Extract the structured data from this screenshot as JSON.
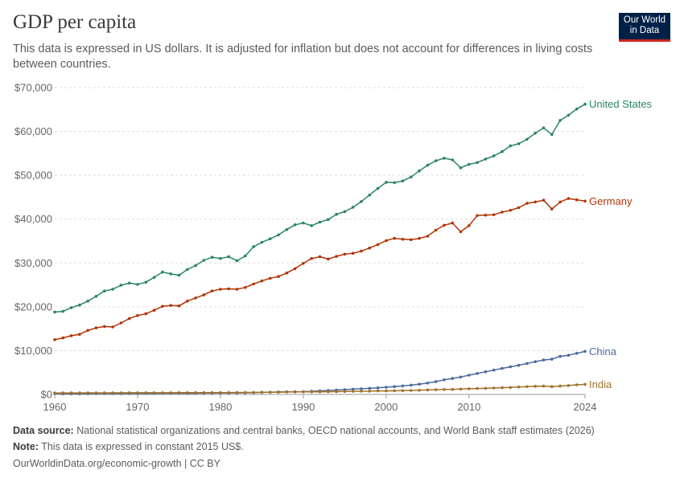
{
  "header": {
    "title": "GDP per capita",
    "subtitle": "This data is expressed in US dollars. It is adjusted for inflation but does not account for differences in living costs between countries.",
    "logo_line1": "Our World",
    "logo_line2": "in Data"
  },
  "footer": {
    "source_label": "Data source:",
    "source_text": "National statistical organizations and central banks, OECD national accounts, and World Bank staff estimates (2026)",
    "note_label": "Note:",
    "note_text": "This data is expressed in constant 2015 US$.",
    "credit": "OurWorldinData.org/economic-growth | CC BY"
  },
  "chart_data": {
    "type": "line",
    "xlim": [
      1960,
      2024
    ],
    "ylim": [
      0,
      70000
    ],
    "x_ticks": [
      1960,
      1970,
      1980,
      1990,
      2000,
      2010,
      2024
    ],
    "x_tick_labels": [
      "1960",
      "1970",
      "1980",
      "1990",
      "2000",
      "2010",
      "2024"
    ],
    "y_ticks": [
      0,
      10000,
      20000,
      30000,
      40000,
      50000,
      60000,
      70000
    ],
    "y_tick_labels": [
      "$0",
      "$10,000",
      "$20,000",
      "$30,000",
      "$40,000",
      "$50,000",
      "$60,000",
      "$70,000"
    ],
    "grid": true,
    "legend": "inline-right",
    "x": [
      1960,
      1961,
      1962,
      1963,
      1964,
      1965,
      1966,
      1967,
      1968,
      1969,
      1970,
      1971,
      1972,
      1973,
      1974,
      1975,
      1976,
      1977,
      1978,
      1979,
      1980,
      1981,
      1982,
      1983,
      1984,
      1985,
      1986,
      1987,
      1988,
      1989,
      1990,
      1991,
      1992,
      1993,
      1994,
      1995,
      1996,
      1997,
      1998,
      1999,
      2000,
      2001,
      2002,
      2003,
      2004,
      2005,
      2006,
      2007,
      2008,
      2009,
      2010,
      2011,
      2012,
      2013,
      2014,
      2015,
      2016,
      2017,
      2018,
      2019,
      2020,
      2021,
      2022,
      2023,
      2024
    ],
    "series": [
      {
        "name": "United States",
        "color": "#2c8465",
        "values": [
          18800,
          18950,
          19800,
          20400,
          21300,
          22400,
          23600,
          24000,
          24900,
          25400,
          25100,
          25600,
          26700,
          27900,
          27500,
          27200,
          28500,
          29400,
          30600,
          31300,
          31000,
          31400,
          30500,
          31600,
          33700,
          34700,
          35500,
          36400,
          37600,
          38700,
          39100,
          38500,
          39300,
          39900,
          41100,
          41700,
          42700,
          44000,
          45500,
          47000,
          48400,
          48300,
          48700,
          49600,
          51000,
          52300,
          53300,
          53900,
          53500,
          51700,
          52500,
          52900,
          53700,
          54400,
          55400,
          56700,
          57200,
          58200,
          59600,
          60800,
          59300,
          62500,
          63700,
          65100,
          66200
        ]
      },
      {
        "name": "Germany",
        "color": "#b13507",
        "values": [
          12500,
          12900,
          13400,
          13700,
          14600,
          15200,
          15500,
          15400,
          16300,
          17300,
          18000,
          18400,
          19200,
          20100,
          20300,
          20200,
          21300,
          22000,
          22700,
          23600,
          24000,
          24100,
          24000,
          24400,
          25200,
          25900,
          26500,
          26900,
          27700,
          28700,
          29900,
          31000,
          31400,
          30900,
          31500,
          32000,
          32200,
          32700,
          33400,
          34200,
          35100,
          35600,
          35400,
          35300,
          35600,
          36100,
          37500,
          38600,
          39100,
          37100,
          38500,
          40800,
          40900,
          41000,
          41600,
          42000,
          42600,
          43600,
          43900,
          44300,
          42300,
          43900,
          44700,
          44400,
          44100
        ]
      },
      {
        "name": "China",
        "color": "#4c6a9c",
        "values": [
          210,
          150,
          140,
          150,
          170,
          190,
          200,
          190,
          180,
          200,
          230,
          240,
          240,
          250,
          250,
          260,
          250,
          260,
          290,
          300,
          320,
          330,
          350,
          380,
          430,
          480,
          510,
          560,
          610,
          630,
          650,
          710,
          800,
          900,
          1000,
          1100,
          1210,
          1310,
          1400,
          1500,
          1650,
          1790,
          1950,
          2130,
          2340,
          2600,
          2920,
          3330,
          3640,
          3980,
          4390,
          4790,
          5160,
          5550,
          5930,
          6310,
          6660,
          7060,
          7480,
          7870,
          8040,
          8690,
          8940,
          9380,
          9830
        ]
      },
      {
        "name": "India",
        "color": "#a2722c",
        "values": [
          330,
          340,
          340,
          350,
          360,
          350,
          340,
          360,
          370,
          380,
          390,
          390,
          380,
          380,
          380,
          400,
          400,
          420,
          430,
          400,
          420,
          430,
          440,
          450,
          460,
          480,
          500,
          510,
          550,
          570,
          590,
          580,
          600,
          620,
          650,
          680,
          720,
          730,
          760,
          810,
          810,
          840,
          860,
          910,
          960,
          1020,
          1080,
          1140,
          1150,
          1220,
          1310,
          1350,
          1400,
          1460,
          1540,
          1590,
          1700,
          1770,
          1850,
          1900,
          1770,
          1910,
          2040,
          2190,
          2300
        ]
      }
    ]
  }
}
